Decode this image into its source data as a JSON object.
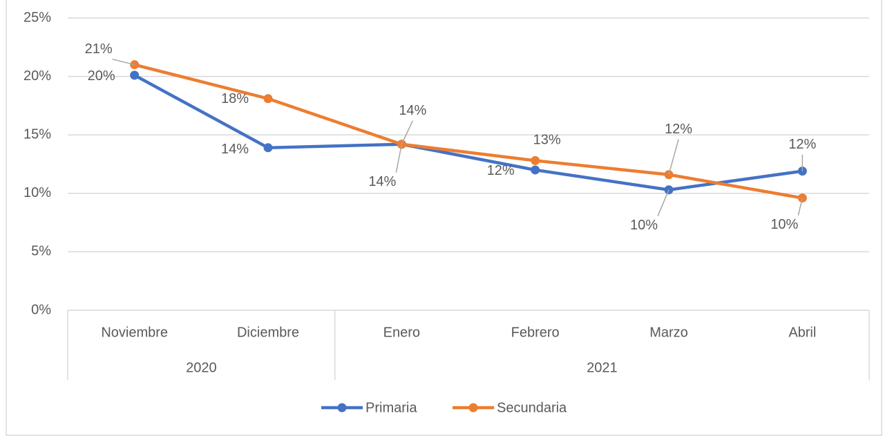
{
  "chart_data": {
    "type": "line",
    "categories": [
      "Noviembre",
      "Diciembre",
      "Enero",
      "Febrero",
      "Marzo",
      "Abril"
    ],
    "category_groups": [
      {
        "label": "2020",
        "count": 2
      },
      {
        "label": "2021",
        "count": 4
      }
    ],
    "series": [
      {
        "name": "Primaria",
        "color": "#4472c4",
        "values": [
          20.1,
          13.9,
          14.2,
          12.0,
          10.3,
          11.9
        ],
        "value_labels": [
          "20%",
          "14%",
          "14%",
          "12%",
          "10%",
          "12%"
        ]
      },
      {
        "name": "Secundaria",
        "color": "#ed7d31",
        "values": [
          21.0,
          18.1,
          14.2,
          12.8,
          11.6,
          9.6
        ],
        "value_labels": [
          "21%",
          "18%",
          "14%",
          "13%",
          "12%",
          "10%"
        ]
      }
    ],
    "ylim": [
      0,
      25
    ],
    "yticks": [
      {
        "value": 0,
        "label": "0%"
      },
      {
        "value": 5,
        "label": "5%"
      },
      {
        "value": 10,
        "label": "10%"
      },
      {
        "value": 15,
        "label": "15%"
      },
      {
        "value": 20,
        "label": "20%"
      },
      {
        "value": 25,
        "label": "25%"
      }
    ],
    "grid": true,
    "legend": "bottom"
  }
}
